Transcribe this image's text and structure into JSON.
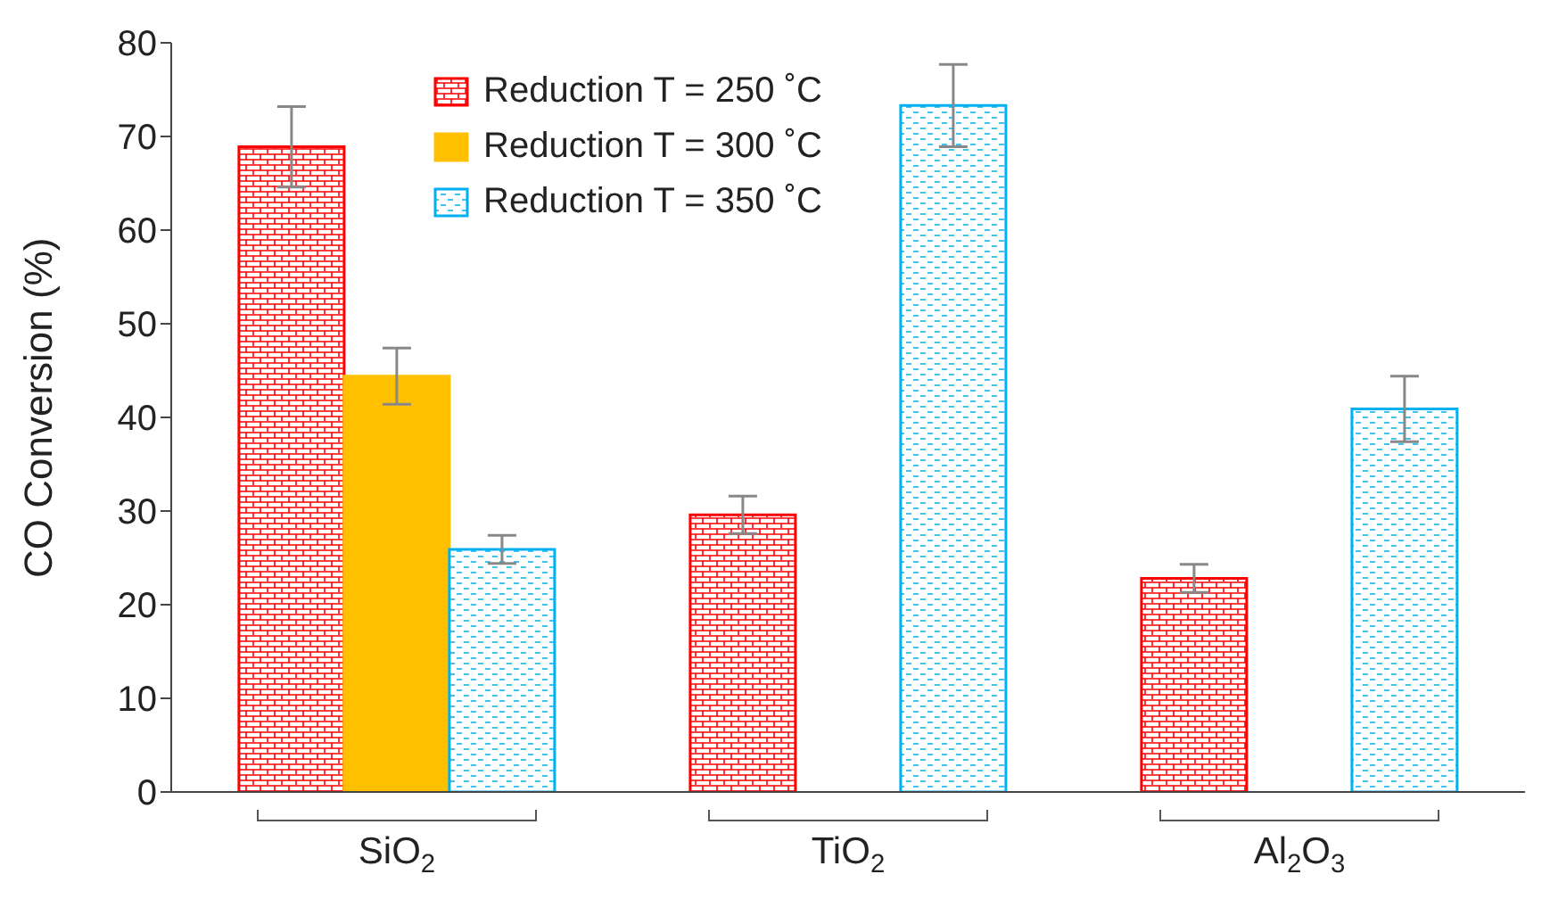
{
  "chart_data": {
    "type": "bar",
    "ylabel": "CO Conversion (%)",
    "categories": [
      "SiO$_{2}$",
      "TiO$_{2}$",
      "Al$_{2}$O$_{3}$"
    ],
    "series": [
      {
        "name": "Reduction T = 250 ˚C",
        "color": "#ff0000",
        "values": [
          68.9,
          29.6,
          22.8
        ],
        "errors": [
          4.3,
          2,
          1.5
        ]
      },
      {
        "name": "Reduction T = 300 ˚C",
        "color": "#ffc000",
        "values": [
          44.4,
          null,
          null
        ],
        "errors": [
          3,
          null,
          null
        ]
      },
      {
        "name": "Reduction T = 350 ˚C",
        "color": "#00b0f0",
        "values": [
          25.9,
          73.3,
          40.9
        ],
        "errors": [
          1.5,
          4.4,
          3.5
        ]
      }
    ],
    "ylim": [
      0,
      80
    ],
    "yticks": [
      0,
      10,
      20,
      30,
      40,
      50,
      60,
      70,
      80
    ],
    "grid": false,
    "legend": "top left"
  }
}
